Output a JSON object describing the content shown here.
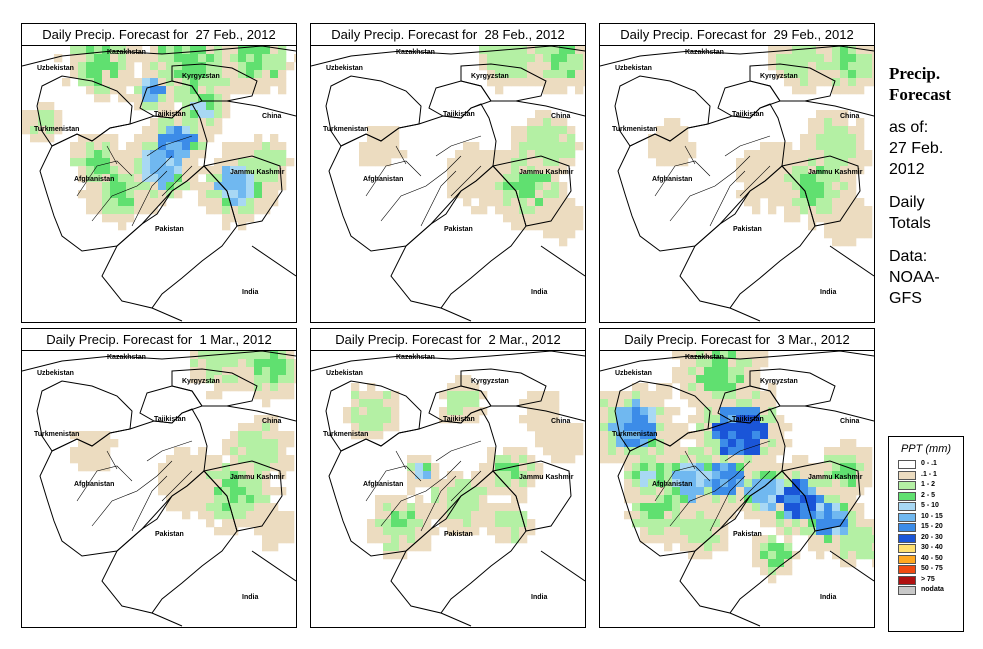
{
  "panels": [
    {
      "title": "Daily Precip. Forecast for  27 Feb., 2012"
    },
    {
      "title": "Daily Precip. Forecast for  28 Feb., 2012"
    },
    {
      "title": "Daily Precip. Forecast for  29 Feb., 2012"
    },
    {
      "title": "Daily Precip. Forecast for  1 Mar., 2012"
    },
    {
      "title": "Daily Precip. Forecast for  2 Mar., 2012"
    },
    {
      "title": "Daily Precip. Forecast for  3 Mar., 2012"
    }
  ],
  "map_labels": {
    "kazakhstan": "Kazakhstan",
    "uzbekistan": "Uzbekistan",
    "kyrgyzstan": "Kyrgyzstan",
    "tajikistan": "Tajikistan",
    "china": "China",
    "turkmenistan": "Turkmenistan",
    "afghanistan": "Afghanistan",
    "jammu_kashmir": "Jammu Kashmir",
    "pakistan": "Pakistan",
    "india": "India"
  },
  "side": {
    "heading1": "Precip.",
    "heading2": "Forecast",
    "asof1": "as of:",
    "asof2": "27 Feb.",
    "asof3": "2012",
    "totals1": "Daily",
    "totals2": "Totals",
    "data1": "Data:",
    "data2": "NOAA-",
    "data3": "GFS"
  },
  "legend": {
    "title": "PPT (mm)",
    "items": [
      {
        "range": "0 - .1",
        "color": "#ffffff"
      },
      {
        "range": ".1 - 1",
        "color": "#ecdcc0"
      },
      {
        "range": "1 - 2",
        "color": "#b4f0a4"
      },
      {
        "range": "2 - 5",
        "color": "#60e070"
      },
      {
        "range": "5 - 10",
        "color": "#a8d8f4"
      },
      {
        "range": "10 - 15",
        "color": "#70b8f0"
      },
      {
        "range": "15 - 20",
        "color": "#3c8ce8"
      },
      {
        "range": "20 - 30",
        "color": "#1a55d8"
      },
      {
        "range": "30 - 40",
        "color": "#ffe070"
      },
      {
        "range": "40 - 50",
        "color": "#ffa820"
      },
      {
        "range": "50 - 75",
        "color": "#f04a10"
      },
      {
        "range": "> 75",
        "color": "#b01010"
      },
      {
        "range": "nodata",
        "color": "#c8c8c8"
      }
    ]
  },
  "forecast_intensity": [
    {
      "date": "27 Feb.",
      "level": "heavy"
    },
    {
      "date": "28 Feb.",
      "level": "light"
    },
    {
      "date": "29 Feb.",
      "level": "light"
    },
    {
      "date": "1 Mar.",
      "level": "light"
    },
    {
      "date": "2 Mar.",
      "level": "moderate"
    },
    {
      "date": "3 Mar.",
      "level": "very-heavy"
    }
  ]
}
